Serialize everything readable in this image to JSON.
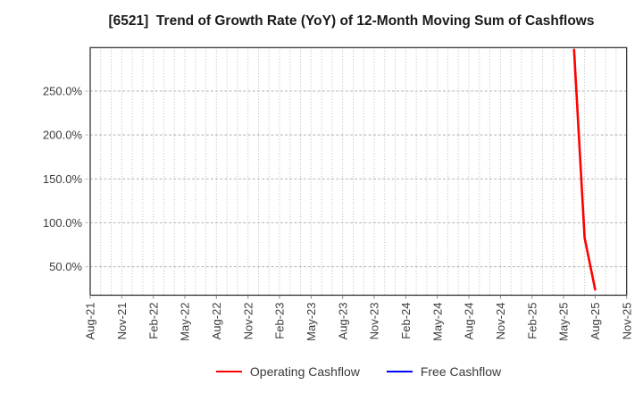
{
  "chart_data": {
    "type": "line",
    "title": "[6521]  Trend of Growth Rate (YoY) of 12-Month Moving Sum of Cashflows",
    "xlabel": "",
    "ylabel": "",
    "x_tick_labels": [
      "Aug-21",
      "Nov-21",
      "Feb-22",
      "May-22",
      "Aug-22",
      "Nov-22",
      "Feb-23",
      "May-23",
      "Aug-23",
      "Nov-23",
      "Feb-24",
      "May-24",
      "Aug-24",
      "Nov-24",
      "Feb-25",
      "May-25",
      "Aug-25",
      "Nov-25"
    ],
    "x_tick_interval_months": 3,
    "months_span": 51,
    "y_ticks": [
      {
        "value": 50,
        "label": "50.0%"
      },
      {
        "value": 100,
        "label": "100.0%"
      },
      {
        "value": 150,
        "label": "150.0%"
      },
      {
        "value": 200,
        "label": "200.0%"
      },
      {
        "value": 250,
        "label": "250.0%"
      }
    ],
    "ylim": [
      17.5,
      299.5
    ],
    "grid": {
      "vertical": "dotted every month",
      "horizontal": "dashed at y ticks",
      "on": true
    },
    "series": [
      {
        "name": "Operating Cashflow",
        "color": "#ff0000",
        "points": [
          {
            "month": "Jun-25",
            "month_index": 46,
            "value_pct": 297
          },
          {
            "month": "Jul-25",
            "month_index": 47,
            "value_pct": 83
          },
          {
            "month": "Aug-25",
            "month_index": 48,
            "value_pct": 24
          }
        ]
      },
      {
        "name": "Free Cashflow",
        "color": "#0000ff",
        "points": []
      }
    ],
    "legend": {
      "position": "bottom-center",
      "entries": [
        "Operating Cashflow",
        "Free Cashflow"
      ]
    }
  },
  "colors": {
    "background": "#ffffff",
    "axis": "#262626",
    "grid": "#b3b3b3",
    "tick_label": "#3c3c3c",
    "title": "#1a1a1a",
    "legend_text": "#3a3a3a"
  }
}
